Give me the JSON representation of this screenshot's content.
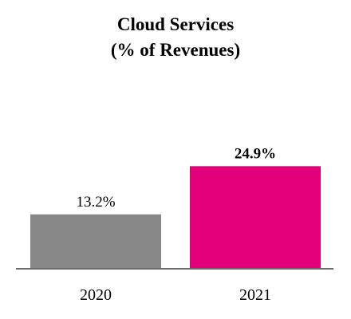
{
  "chart_data": {
    "type": "bar",
    "title": "Cloud Services",
    "subtitle": "(% of Revenues)",
    "categories": [
      "2020",
      "2021"
    ],
    "values": [
      13.2,
      24.9
    ],
    "value_labels": [
      "13.2%",
      "24.9%"
    ],
    "label_bold": [
      false,
      true
    ],
    "colors": [
      "#878787",
      "#e2007a"
    ],
    "ylim": [
      0,
      30
    ],
    "grid": false,
    "legend": "none"
  }
}
